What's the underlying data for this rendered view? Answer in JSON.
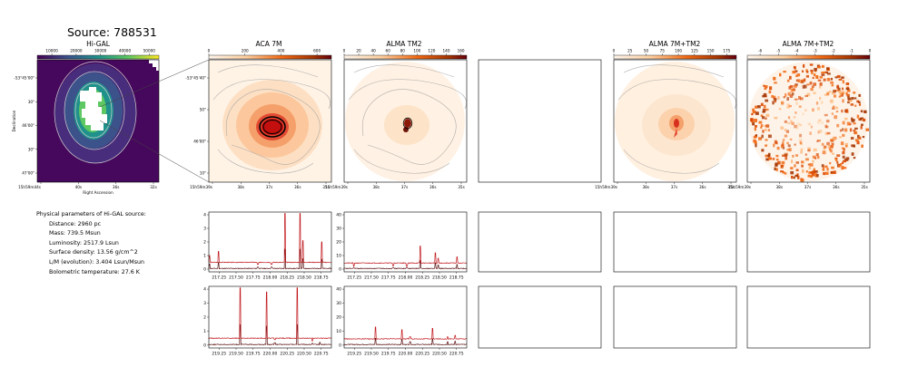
{
  "source_title": "Source: 788531",
  "panels": [
    {
      "id": "higal",
      "title": "Hi-GAL",
      "cbar_ticks": [
        "10000",
        "20000",
        "30000",
        "40000",
        "50000"
      ],
      "cbar_range": [
        4000,
        54000
      ],
      "yticks": [
        "-53°45'00\"",
        "30\"",
        "46'00\"",
        "30\"",
        "47'00\""
      ],
      "xticks": [
        "15h59m44s",
        "40s",
        "36s",
        "32s"
      ],
      "xlabel": "Right Ascension",
      "ylabel": "Declination"
    },
    {
      "id": "aca7m",
      "title": "ACA 7M",
      "cbar_ticks": [
        "0",
        "200",
        "400",
        "600"
      ],
      "cbar_range": [
        0,
        680
      ],
      "yticks": [
        "-53°45'40\"",
        "50\"",
        "46'00\"",
        "10\""
      ],
      "xticks": [
        "15h59m39s",
        "38s",
        "37s",
        "36s",
        "35s"
      ]
    },
    {
      "id": "almatm2",
      "title": "ALMA TM2",
      "cbar_ticks": [
        "0",
        "20",
        "40",
        "60",
        "80",
        "100",
        "120",
        "140",
        "160"
      ],
      "cbar_range": [
        0,
        168
      ],
      "xticks": [
        "15h59m39s",
        "38s",
        "37s",
        "36s",
        "35s"
      ]
    },
    {
      "id": "almacomb1",
      "title": "ALMA 7M+TM2",
      "cbar_ticks": [
        "0",
        "25",
        "50",
        "75",
        "100",
        "125",
        "150",
        "175"
      ],
      "cbar_range": [
        0,
        190
      ],
      "xticks": [
        "15h59m39s",
        "38s",
        "37s",
        "36s",
        "35s"
      ]
    },
    {
      "id": "almacomb2",
      "title": "ALMA 7M+TM2",
      "cbar_ticks": [
        "-6",
        "-5",
        "-4",
        "-3",
        "-2",
        "-1",
        "0"
      ],
      "cbar_range": [
        -6.7,
        0
      ],
      "xticks": [
        "15h59m39s",
        "38s",
        "37s",
        "36s",
        "35s"
      ]
    }
  ],
  "params": {
    "heading": "Physical parameters of Hi-GAL source:",
    "lines": [
      "Distance: 2960 pc",
      "Mass: 739.5 Msun",
      "Luminosity: 2517.9 Lsun",
      "Surface density: 13.56 g/cm^2",
      "L/M (evolution): 3.404 Lsun/Msun",
      "Bolometric temperature: 27.6 K"
    ]
  },
  "chart_data": [
    {
      "type": "line",
      "panel": "aca7m-spw1",
      "xlim": [
        217.1,
        218.9
      ],
      "ylim": [
        -0.2,
        4.2
      ],
      "xticks": [
        "217.25",
        "217.50",
        "217.75",
        "218.00",
        "218.25",
        "218.50",
        "218.75"
      ],
      "yticks": [
        "0",
        "1",
        "2",
        "3",
        "4"
      ],
      "baselines": [
        0.05,
        0.5
      ],
      "peaks": [
        [
          217.11,
          1.0
        ],
        [
          217.24,
          1.3
        ],
        [
          217.82,
          0.35
        ],
        [
          218.02,
          0.35
        ],
        [
          218.22,
          4.1
        ],
        [
          218.44,
          4.1
        ],
        [
          218.48,
          2.1
        ],
        [
          218.76,
          2.0
        ]
      ]
    },
    {
      "type": "line",
      "panel": "almatm2-spw1",
      "xlim": [
        217.1,
        218.9
      ],
      "ylim": [
        -2,
        42
      ],
      "xticks": [
        "217.25",
        "217.50",
        "217.75",
        "218.00",
        "218.25",
        "218.50",
        "218.75"
      ],
      "yticks": [
        "0",
        "10",
        "20",
        "30",
        "40"
      ],
      "baselines": [
        0.5,
        4.5
      ],
      "peaks": [
        [
          217.24,
          2
        ],
        [
          217.82,
          2.5
        ],
        [
          218.02,
          2
        ],
        [
          218.22,
          17
        ],
        [
          218.44,
          12
        ],
        [
          218.48,
          8
        ],
        [
          218.76,
          9
        ]
      ]
    },
    {
      "type": "line",
      "panel": "aca7m-spw2",
      "xlim": [
        219.1,
        220.9
      ],
      "ylim": [
        -0.2,
        4.2
      ],
      "xticks": [
        "219.25",
        "219.50",
        "219.75",
        "220.00",
        "220.25",
        "220.50",
        "220.75"
      ],
      "yticks": [
        "0",
        "1",
        "2",
        "3",
        "4"
      ],
      "baselines": [
        0.05,
        0.5
      ],
      "peaks": [
        [
          219.56,
          4.1
        ],
        [
          219.95,
          3.8
        ],
        [
          220.07,
          0.4
        ],
        [
          220.4,
          4.1
        ],
        [
          220.62,
          0.3
        ],
        [
          220.73,
          0.5
        ]
      ]
    },
    {
      "type": "line",
      "panel": "almatm2-spw2",
      "xlim": [
        219.1,
        220.9
      ],
      "ylim": [
        -2,
        42
      ],
      "xticks": [
        "219.25",
        "219.50",
        "219.75",
        "220.00",
        "220.25",
        "220.50",
        "220.75"
      ],
      "yticks": [
        "0",
        "10",
        "20",
        "30",
        "40"
      ],
      "baselines": [
        0.5,
        4.5
      ],
      "peaks": [
        [
          219.56,
          13
        ],
        [
          219.95,
          11
        ],
        [
          220.07,
          6
        ],
        [
          220.4,
          12
        ],
        [
          220.62,
          6
        ],
        [
          220.73,
          7
        ]
      ]
    }
  ]
}
